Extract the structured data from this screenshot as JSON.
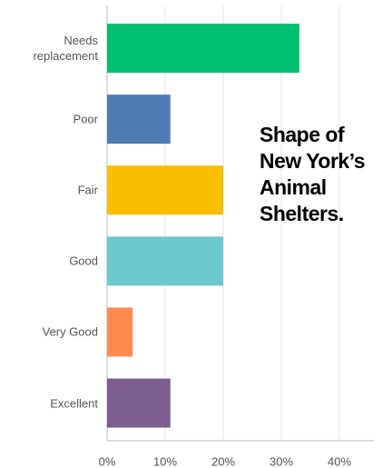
{
  "chart_data": {
    "type": "barh",
    "categories": [
      "Needs replacement",
      "Poor",
      "Fair",
      "Good",
      "Very Good",
      "Excellent"
    ],
    "values": [
      33.1,
      10.9,
      20,
      20,
      4.4,
      10.9
    ],
    "colors": [
      "#00bf6f",
      "#507cb6",
      "#f9be00",
      "#6bc8cd",
      "#ff8b4f",
      "#7d5e90"
    ],
    "xlim": [
      0,
      45
    ],
    "xticks": [
      {
        "value": 0,
        "label": "0%"
      },
      {
        "value": 10,
        "label": "10%"
      },
      {
        "value": 20,
        "label": "20%"
      },
      {
        "value": 30,
        "label": "30%"
      },
      {
        "value": 40,
        "label": "40%"
      }
    ],
    "grid": true,
    "annotation": [
      "Shape of",
      "New York’s",
      "Animal",
      "Shelters."
    ]
  }
}
